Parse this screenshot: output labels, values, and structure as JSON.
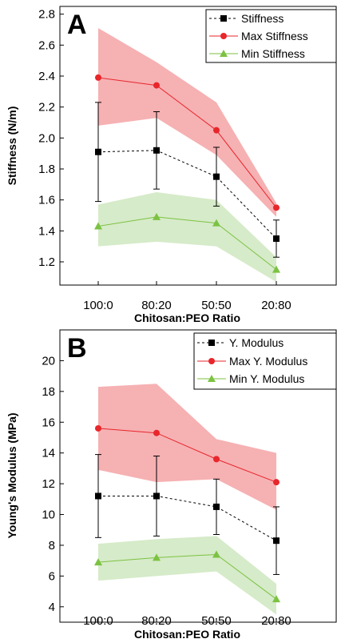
{
  "chart_data": [
    {
      "type": "line",
      "panel_label": "A",
      "categories": [
        "100:0",
        "80:20",
        "50:50",
        "20:80"
      ],
      "xlabel": "Chitosan:PEO Ratio",
      "ylabel": "Stiffness (N/m)",
      "ylim": [
        1.05,
        2.85
      ],
      "yticks": [
        "1.2",
        "1.4",
        "1.6",
        "1.8",
        "2.0",
        "2.2",
        "2.4",
        "2.6",
        "2.8"
      ],
      "legend_position": "top-right",
      "series": [
        {
          "name": "Stiffness",
          "values": [
            1.91,
            1.92,
            1.75,
            1.35
          ],
          "error": [
            0.32,
            0.25,
            0.19,
            0.12
          ],
          "color": "#000000",
          "style": "dashed",
          "marker": "square"
        },
        {
          "name": "Max Stiffness",
          "values": [
            2.39,
            2.34,
            2.05,
            1.55
          ],
          "band": {
            "upper": [
              2.71,
              2.49,
              2.23,
              1.58
            ],
            "lower": [
              2.08,
              2.13,
              1.89,
              1.49
            ]
          },
          "color": "#e8262b",
          "band_color": "#f4a3a6",
          "style": "solid",
          "marker": "circle"
        },
        {
          "name": "Min Stiffness",
          "values": [
            1.43,
            1.49,
            1.45,
            1.15
          ],
          "band": {
            "upper": [
              1.57,
              1.65,
              1.6,
              1.23
            ],
            "lower": [
              1.3,
              1.33,
              1.3,
              1.07
            ]
          },
          "color": "#7cc242",
          "band_color": "#cfe8c0",
          "style": "solid",
          "marker": "triangle"
        }
      ]
    },
    {
      "type": "line",
      "panel_label": "B",
      "categories": [
        "100:0",
        "80:20",
        "50:50",
        "20:80"
      ],
      "xlabel": "Chitosan:PEO Ratio",
      "ylabel": "Young's Modulus (MPa)",
      "ylim": [
        3,
        22
      ],
      "yticks": [
        "4",
        "6",
        "8",
        "10",
        "12",
        "14",
        "16",
        "18",
        "20"
      ],
      "legend_position": "top-right",
      "series": [
        {
          "name": "Y. Modulus",
          "values": [
            11.2,
            11.2,
            10.5,
            8.3
          ],
          "error": [
            2.7,
            2.6,
            1.8,
            2.2
          ],
          "color": "#000000",
          "style": "dashed",
          "marker": "square"
        },
        {
          "name": "Max Y. Modulus",
          "values": [
            15.6,
            15.3,
            13.6,
            12.1
          ],
          "band": {
            "upper": [
              18.3,
              18.5,
              14.9,
              14.0
            ],
            "lower": [
              12.9,
              12.1,
              12.3,
              10.3
            ]
          },
          "color": "#e8262b",
          "band_color": "#f4a3a6",
          "style": "solid",
          "marker": "circle"
        },
        {
          "name": "Min Y. Modulus",
          "values": [
            6.9,
            7.2,
            7.4,
            4.5
          ],
          "band": {
            "upper": [
              8.1,
              8.4,
              8.6,
              5.5
            ],
            "lower": [
              5.7,
              6.0,
              6.3,
              3.5
            ]
          },
          "color": "#7cc242",
          "band_color": "#cfe8c0",
          "style": "solid",
          "marker": "triangle"
        }
      ]
    }
  ]
}
